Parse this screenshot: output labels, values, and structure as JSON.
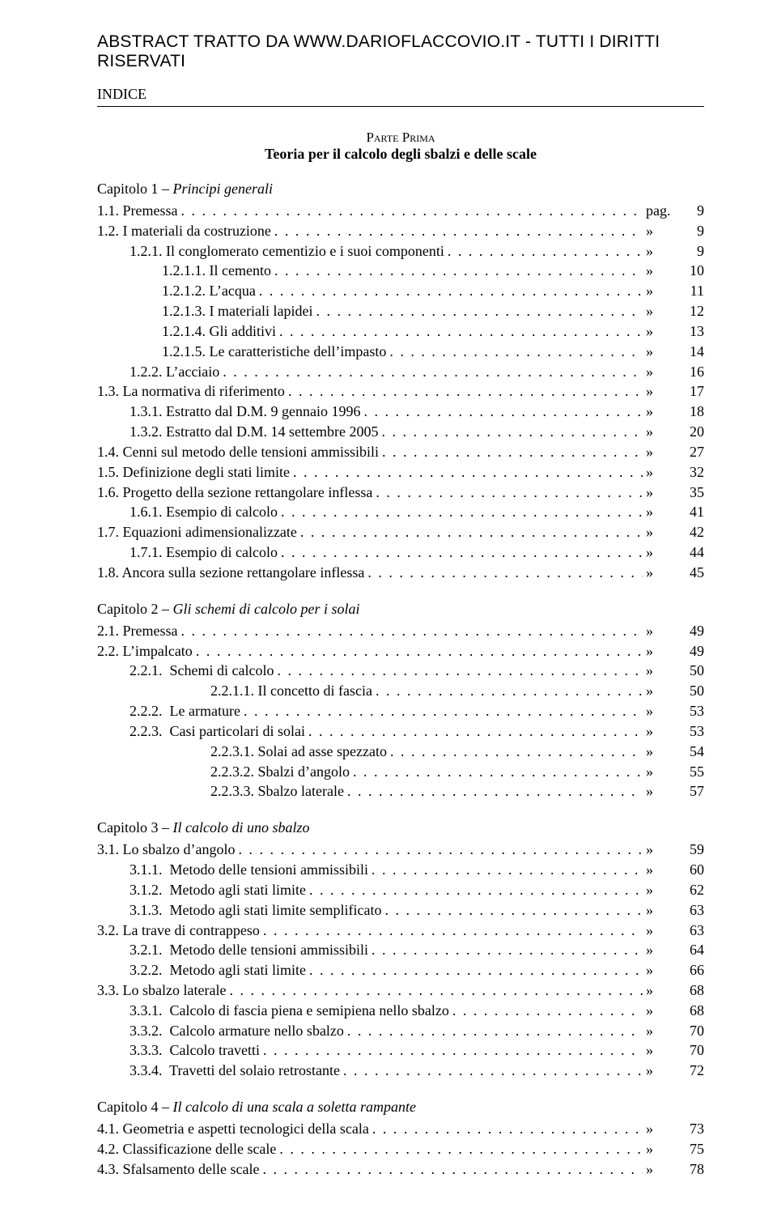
{
  "header": "ABSTRACT TRATTO DA WWW.DARIOFLACCOVIO.IT - TUTTI I DIRITTI RISERVATI",
  "indice": "INDICE",
  "part_line1": "Parte Prima",
  "part_line2": "Teoria per il calcolo degli sbalzi e delle scale",
  "chapters": [
    {
      "title_prefix": "Capitolo 1 – ",
      "title_italic": "Principi generali",
      "entries": [
        {
          "indent": 0,
          "label": "1.1. Premessa",
          "unit": "pag.",
          "page": "9"
        },
        {
          "indent": 0,
          "label": "1.2. I materiali da costruzione",
          "unit": "»",
          "page": "9"
        },
        {
          "indent": 1,
          "label": "1.2.1. Il conglomerato cementizio e i suoi componenti",
          "unit": "»",
          "page": "9"
        },
        {
          "indent": 2,
          "label": "1.2.1.1. Il cemento",
          "unit": "»",
          "page": "10"
        },
        {
          "indent": 2,
          "label": "1.2.1.2. L’acqua",
          "unit": "»",
          "page": "11"
        },
        {
          "indent": 2,
          "label": "1.2.1.3. I materiali lapidei",
          "unit": "»",
          "page": "12"
        },
        {
          "indent": 2,
          "label": "1.2.1.4. Gli additivi",
          "unit": "»",
          "page": "13"
        },
        {
          "indent": 2,
          "label": "1.2.1.5. Le caratteristiche dell’impasto",
          "unit": "»",
          "page": "14"
        },
        {
          "indent": 1,
          "label": "1.2.2. L’acciaio",
          "unit": "»",
          "page": "16"
        },
        {
          "indent": 0,
          "label": "1.3. La normativa di riferimento",
          "unit": "»",
          "page": "17"
        },
        {
          "indent": 1,
          "label": "1.3.1. Estratto dal D.M. 9 gennaio 1996",
          "unit": "»",
          "page": "18"
        },
        {
          "indent": 1,
          "label": "1.3.2. Estratto dal D.M. 14 settembre 2005",
          "unit": "»",
          "page": "20"
        },
        {
          "indent": 0,
          "label": "1.4. Cenni sul metodo delle tensioni ammissibili",
          "unit": "»",
          "page": "27"
        },
        {
          "indent": 0,
          "label": "1.5. Definizione degli stati limite",
          "unit": "»",
          "page": "32"
        },
        {
          "indent": 0,
          "label": "1.6. Progetto della sezione rettangolare inflessa",
          "unit": "»",
          "page": "35"
        },
        {
          "indent": 1,
          "label": "1.6.1. Esempio di calcolo",
          "unit": "»",
          "page": "41"
        },
        {
          "indent": 0,
          "label": "1.7. Equazioni adimensionalizzate",
          "unit": "»",
          "page": "42"
        },
        {
          "indent": 1,
          "label": "1.7.1. Esempio di calcolo",
          "unit": "»",
          "page": "44"
        },
        {
          "indent": 0,
          "label": "1.8. Ancora sulla sezione rettangolare inflessa",
          "unit": "»",
          "page": "45"
        }
      ]
    },
    {
      "title_prefix": "Capitolo 2 – ",
      "title_italic": "Gli schemi di calcolo per i solai",
      "entries": [
        {
          "indent": 0,
          "label": "2.1. Premessa",
          "unit": "»",
          "page": "49"
        },
        {
          "indent": 0,
          "label": "2.2. L’impalcato",
          "unit": "»",
          "page": "49"
        },
        {
          "indent": 1,
          "label": "2.2.1.  Schemi di calcolo",
          "unit": "»",
          "page": "50"
        },
        {
          "indent": 3,
          "label": "2.2.1.1. Il concetto di fascia",
          "unit": "»",
          "page": "50"
        },
        {
          "indent": 1,
          "label": "2.2.2.  Le armature",
          "unit": "»",
          "page": "53"
        },
        {
          "indent": 1,
          "label": "2.2.3.  Casi particolari di solai",
          "unit": "»",
          "page": "53"
        },
        {
          "indent": 3,
          "label": "2.2.3.1. Solai ad asse spezzato",
          "unit": "»",
          "page": "54"
        },
        {
          "indent": 3,
          "label": "2.2.3.2. Sbalzi d’angolo",
          "unit": "»",
          "page": "55"
        },
        {
          "indent": 3,
          "label": "2.2.3.3. Sbalzo laterale",
          "unit": "»",
          "page": "57"
        }
      ]
    },
    {
      "title_prefix": "Capitolo 3 – ",
      "title_italic": "Il calcolo di uno sbalzo",
      "entries": [
        {
          "indent": 0,
          "label": "3.1. Lo sbalzo d’angolo",
          "unit": "»",
          "page": "59"
        },
        {
          "indent": 1,
          "label": "3.1.1.  Metodo delle tensioni ammissibili",
          "unit": "»",
          "page": "60"
        },
        {
          "indent": 1,
          "label": "3.1.2.  Metodo agli stati limite",
          "unit": "»",
          "page": "62"
        },
        {
          "indent": 1,
          "label": "3.1.3.  Metodo agli stati limite semplificato",
          "unit": "»",
          "page": "63"
        },
        {
          "indent": 0,
          "label": "3.2. La trave di contrappeso",
          "unit": "»",
          "page": "63"
        },
        {
          "indent": 1,
          "label": "3.2.1.  Metodo delle tensioni ammissibili",
          "unit": "»",
          "page": "64"
        },
        {
          "indent": 1,
          "label": "3.2.2.  Metodo agli stati limite",
          "unit": "»",
          "page": "66"
        },
        {
          "indent": 0,
          "label": "3.3. Lo sbalzo laterale",
          "unit": "»",
          "page": "68"
        },
        {
          "indent": 1,
          "label": "3.3.1.  Calcolo di fascia piena e semipiena nello sbalzo",
          "unit": "»",
          "page": "68"
        },
        {
          "indent": 1,
          "label": "3.3.2.  Calcolo armature nello sbalzo",
          "unit": "»",
          "page": "70"
        },
        {
          "indent": 1,
          "label": "3.3.3.  Calcolo travetti",
          "unit": "»",
          "page": "70"
        },
        {
          "indent": 1,
          "label": "3.3.4.  Travetti del solaio retrostante",
          "unit": "»",
          "page": "72"
        }
      ]
    },
    {
      "title_prefix": "Capitolo 4 – ",
      "title_italic": "Il calcolo di una scala a soletta rampante",
      "entries": [
        {
          "indent": 0,
          "label": "4.1. Geometria e aspetti tecnologici della scala",
          "unit": "»",
          "page": "73"
        },
        {
          "indent": 0,
          "label": "4.2. Classificazione delle scale",
          "unit": "»",
          "page": "75"
        },
        {
          "indent": 0,
          "label": "4.3. Sfalsamento delle scale",
          "unit": "»",
          "page": "78"
        }
      ]
    }
  ]
}
